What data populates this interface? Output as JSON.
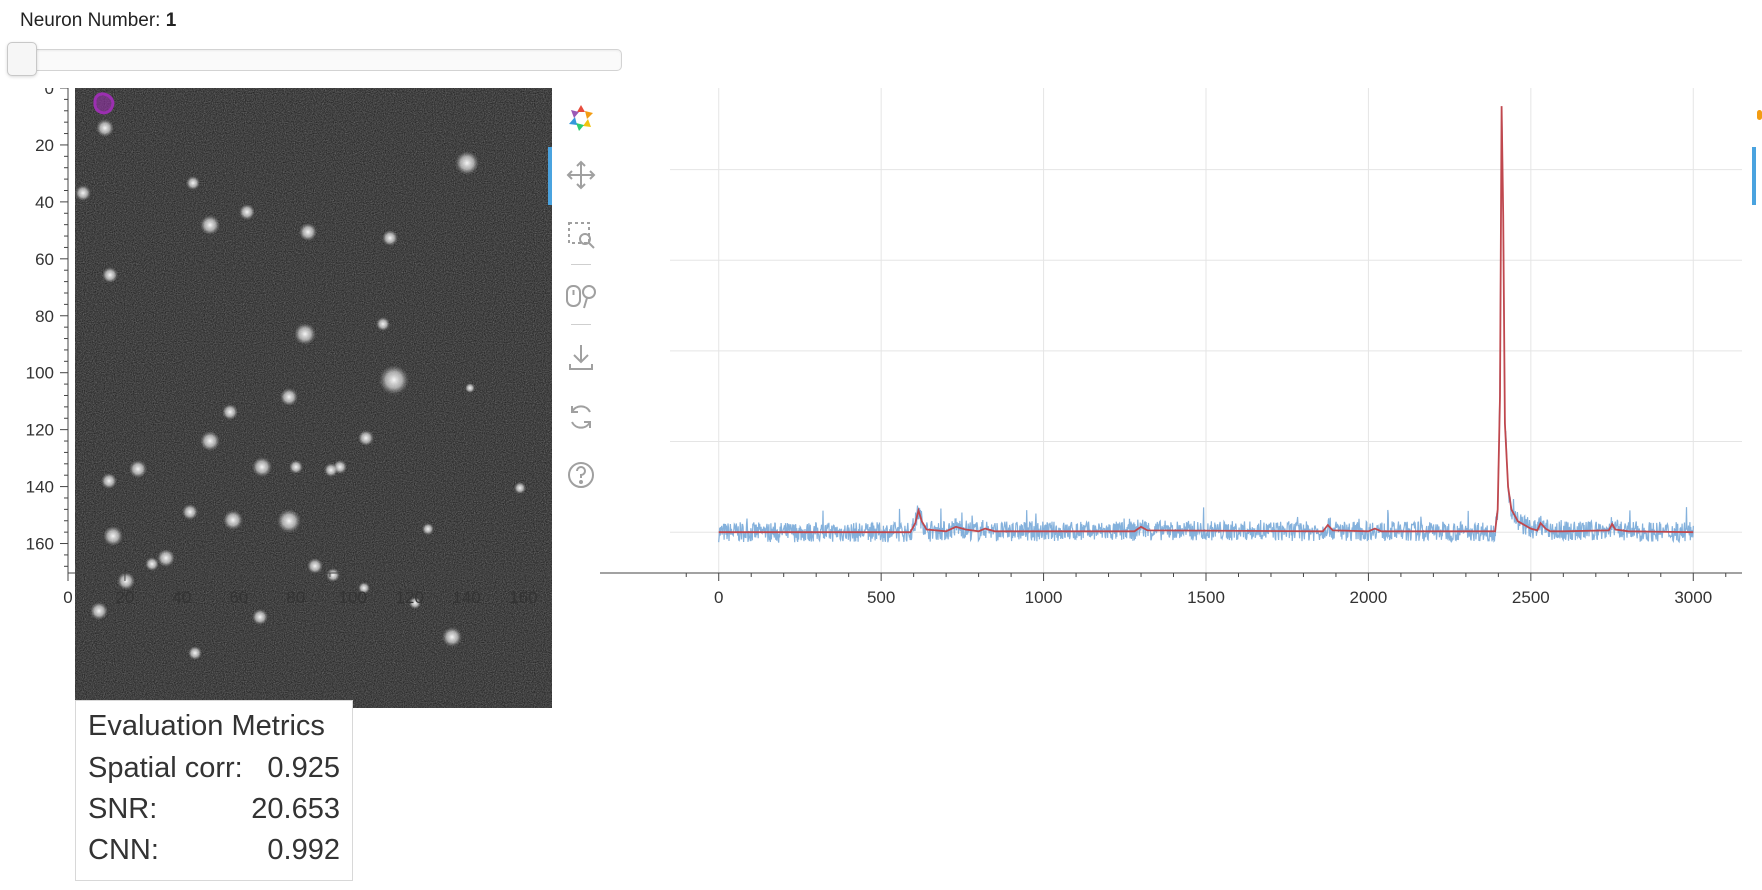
{
  "slider": {
    "label": "Neuron Number: ",
    "value": "1",
    "min": 1,
    "position_fraction": 0.0
  },
  "image_plot": {
    "y_ticks": [
      "0",
      "20",
      "40",
      "60",
      "80",
      "100",
      "120",
      "140",
      "160"
    ],
    "x_ticks": [
      "0",
      "20",
      "40",
      "60",
      "80",
      "100",
      "120",
      "140",
      "160"
    ],
    "contour_color": "#9b2fb0"
  },
  "toolbar": {
    "tools": [
      "bokeh-logo",
      "pan",
      "box-zoom",
      "wheel-zoom",
      "save",
      "reset",
      "help"
    ],
    "active_color": "#4aa3df"
  },
  "metrics": {
    "title": "Evaluation Metrics",
    "rows": [
      {
        "label": "Spatial corr:",
        "value": "0.925"
      },
      {
        "label": "SNR:",
        "value": "20.653"
      },
      {
        "label": "CNN:",
        "value": "0.992"
      }
    ]
  },
  "chart_data": {
    "type": "line",
    "title": "",
    "xlabel": "",
    "ylabel": "",
    "xlim": [
      -150,
      3150
    ],
    "ylim": [
      -4.5,
      49
    ],
    "x_ticks": [
      0,
      500,
      1000,
      1500,
      2000,
      2500,
      3000
    ],
    "y_ticks": [
      0,
      10,
      20,
      30,
      40
    ],
    "grid": true,
    "series": [
      {
        "color": "#6fa3d6",
        "style": "noisy raw trace",
        "x": [
          0,
          1000,
          1500,
          2000,
          2400,
          2440,
          3000
        ],
        "y": [
          0,
          0,
          0,
          0,
          0,
          0,
          0
        ]
      },
      {
        "color": "#c0484e",
        "style": "denoised trace",
        "x": [
          0,
          590,
          605,
          615,
          625,
          640,
          700,
          730,
          760,
          800,
          820,
          850,
          1280,
          1300,
          1320,
          1860,
          1875,
          1890,
          2000,
          2020,
          2040,
          2390,
          2398,
          2405,
          2410,
          2415,
          2420,
          2430,
          2440,
          2460,
          2500,
          2520,
          2530,
          2545,
          2560,
          2600,
          2740,
          2750,
          2760,
          2800,
          3000
        ],
        "y": [
          0,
          0,
          1.0,
          2.4,
          1.2,
          0.3,
          0.1,
          0.6,
          0.3,
          0.1,
          0.4,
          0.1,
          0.1,
          0.6,
          0.2,
          0.1,
          0.8,
          0.2,
          0.1,
          0.4,
          0.1,
          0.1,
          2.5,
          15,
          47,
          35,
          12,
          5,
          2.5,
          1.2,
          0.4,
          0.2,
          1.0,
          0.4,
          0.1,
          0.1,
          0.2,
          0.9,
          0.3,
          0.1,
          0
        ]
      }
    ]
  }
}
